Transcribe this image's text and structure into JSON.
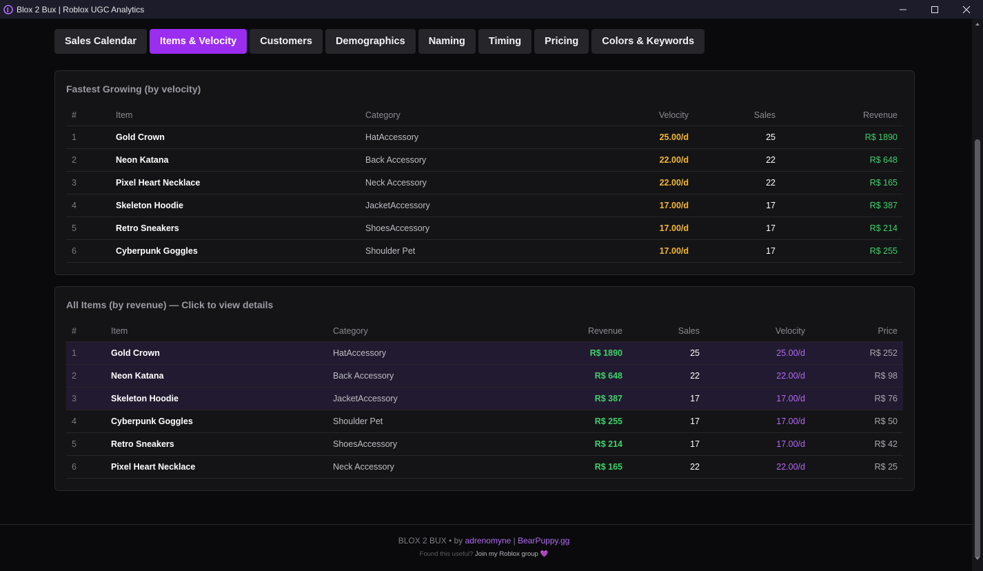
{
  "window": {
    "title": "Blox 2 Bux | Roblox UGC Analytics"
  },
  "tabs": [
    {
      "label": "Sales Calendar",
      "active": false
    },
    {
      "label": "Items & Velocity",
      "active": true
    },
    {
      "label": "Customers",
      "active": false
    },
    {
      "label": "Demographics",
      "active": false
    },
    {
      "label": "Naming",
      "active": false
    },
    {
      "label": "Timing",
      "active": false
    },
    {
      "label": "Pricing",
      "active": false
    },
    {
      "label": "Colors & Keywords",
      "active": false
    }
  ],
  "fastest": {
    "title": "Fastest Growing (by velocity)",
    "headers": {
      "idx": "#",
      "item": "Item",
      "category": "Category",
      "velocity": "Velocity",
      "sales": "Sales",
      "revenue": "Revenue"
    },
    "rows": [
      {
        "idx": "1",
        "item": "Gold Crown",
        "category": "HatAccessory",
        "velocity": "25.00/d",
        "sales": "25",
        "revenue": "R$ 1890"
      },
      {
        "idx": "2",
        "item": "Neon Katana",
        "category": "Back Accessory",
        "velocity": "22.00/d",
        "sales": "22",
        "revenue": "R$ 648"
      },
      {
        "idx": "3",
        "item": "Pixel Heart Necklace",
        "category": "Neck Accessory",
        "velocity": "22.00/d",
        "sales": "22",
        "revenue": "R$ 165"
      },
      {
        "idx": "4",
        "item": "Skeleton Hoodie",
        "category": "JacketAccessory",
        "velocity": "17.00/d",
        "sales": "17",
        "revenue": "R$ 387"
      },
      {
        "idx": "5",
        "item": "Retro Sneakers",
        "category": "ShoesAccessory",
        "velocity": "17.00/d",
        "sales": "17",
        "revenue": "R$ 214"
      },
      {
        "idx": "6",
        "item": "Cyberpunk Goggles",
        "category": "Shoulder Pet",
        "velocity": "17.00/d",
        "sales": "17",
        "revenue": "R$ 255"
      }
    ]
  },
  "all_items": {
    "title": "All Items (by revenue) — Click to view details",
    "headers": {
      "idx": "#",
      "item": "Item",
      "category": "Category",
      "revenue": "Revenue",
      "sales": "Sales",
      "velocity": "Velocity",
      "price": "Price"
    },
    "rows": [
      {
        "idx": "1",
        "item": "Gold Crown",
        "category": "HatAccessory",
        "revenue": "R$ 1890",
        "sales": "25",
        "velocity": "25.00/d",
        "price": "R$ 252",
        "highlighted": true
      },
      {
        "idx": "2",
        "item": "Neon Katana",
        "category": "Back Accessory",
        "revenue": "R$ 648",
        "sales": "22",
        "velocity": "22.00/d",
        "price": "R$ 98",
        "highlighted": true
      },
      {
        "idx": "3",
        "item": "Skeleton Hoodie",
        "category": "JacketAccessory",
        "revenue": "R$ 387",
        "sales": "17",
        "velocity": "17.00/d",
        "price": "R$ 76",
        "highlighted": true
      },
      {
        "idx": "4",
        "item": "Cyberpunk Goggles",
        "category": "Shoulder Pet",
        "revenue": "R$ 255",
        "sales": "17",
        "velocity": "17.00/d",
        "price": "R$ 50",
        "highlighted": false
      },
      {
        "idx": "5",
        "item": "Retro Sneakers",
        "category": "ShoesAccessory",
        "revenue": "R$ 214",
        "sales": "17",
        "velocity": "17.00/d",
        "price": "R$ 42",
        "highlighted": false
      },
      {
        "idx": "6",
        "item": "Pixel Heart Necklace",
        "category": "Neck Accessory",
        "revenue": "R$ 165",
        "sales": "22",
        "velocity": "22.00/d",
        "price": "R$ 25",
        "highlighted": false
      }
    ]
  },
  "footer": {
    "prefix": "BLOX 2 BUX • by ",
    "author": "adrenomyne",
    "separator": " | ",
    "partner": "BearPuppy.gg",
    "line2_prefix": "Found this useful? ",
    "line2_link": "Join my Roblox group",
    "heart": "💜"
  },
  "colors": {
    "accent": "#9a2df0",
    "velocity_gold": "#f5b731",
    "revenue_green": "#3fd16a",
    "velocity_purple": "#b26bf5",
    "highlight_row": "#221a30"
  },
  "icons": [
    "app-logo-icon",
    "minimize-icon",
    "maximize-icon",
    "close-icon",
    "scroll-up-icon",
    "scroll-down-icon"
  ]
}
